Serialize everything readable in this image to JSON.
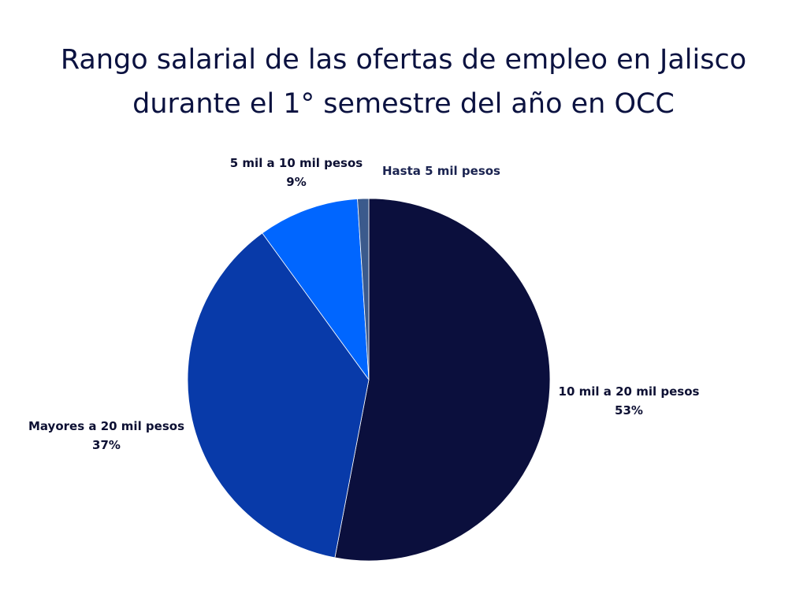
{
  "chart_data": {
    "type": "pie",
    "title": "Rango salarial de las ofertas de empleo en Jalisco durante el 1° semestre del año en OCC",
    "title_lines": [
      "Rango salarial de las ofertas de empleo en Jalisco",
      "durante el 1° semestre del año en OCC"
    ],
    "start_angle_deg": 0,
    "direction": "clockwise",
    "slices": [
      {
        "label": "10 mil a 20 mil pesos",
        "value": 53,
        "value_label": "53%",
        "color": "#0b0f3d"
      },
      {
        "label": "Mayores a 20 mil pesos",
        "value": 37,
        "value_label": "37%",
        "color": "#083aa9"
      },
      {
        "label": "5 mil a 10 mil pesos",
        "value": 9,
        "value_label": "9%",
        "color": "#0066ff"
      },
      {
        "label": "Hasta 5 mil pesos",
        "value": 1,
        "value_label": "",
        "color": "#3b5a8c"
      }
    ]
  },
  "colors": {
    "title": "#0b1240",
    "label_text": "#0d1033",
    "label_text_small": "#1a2350",
    "background": "#ffffff"
  }
}
